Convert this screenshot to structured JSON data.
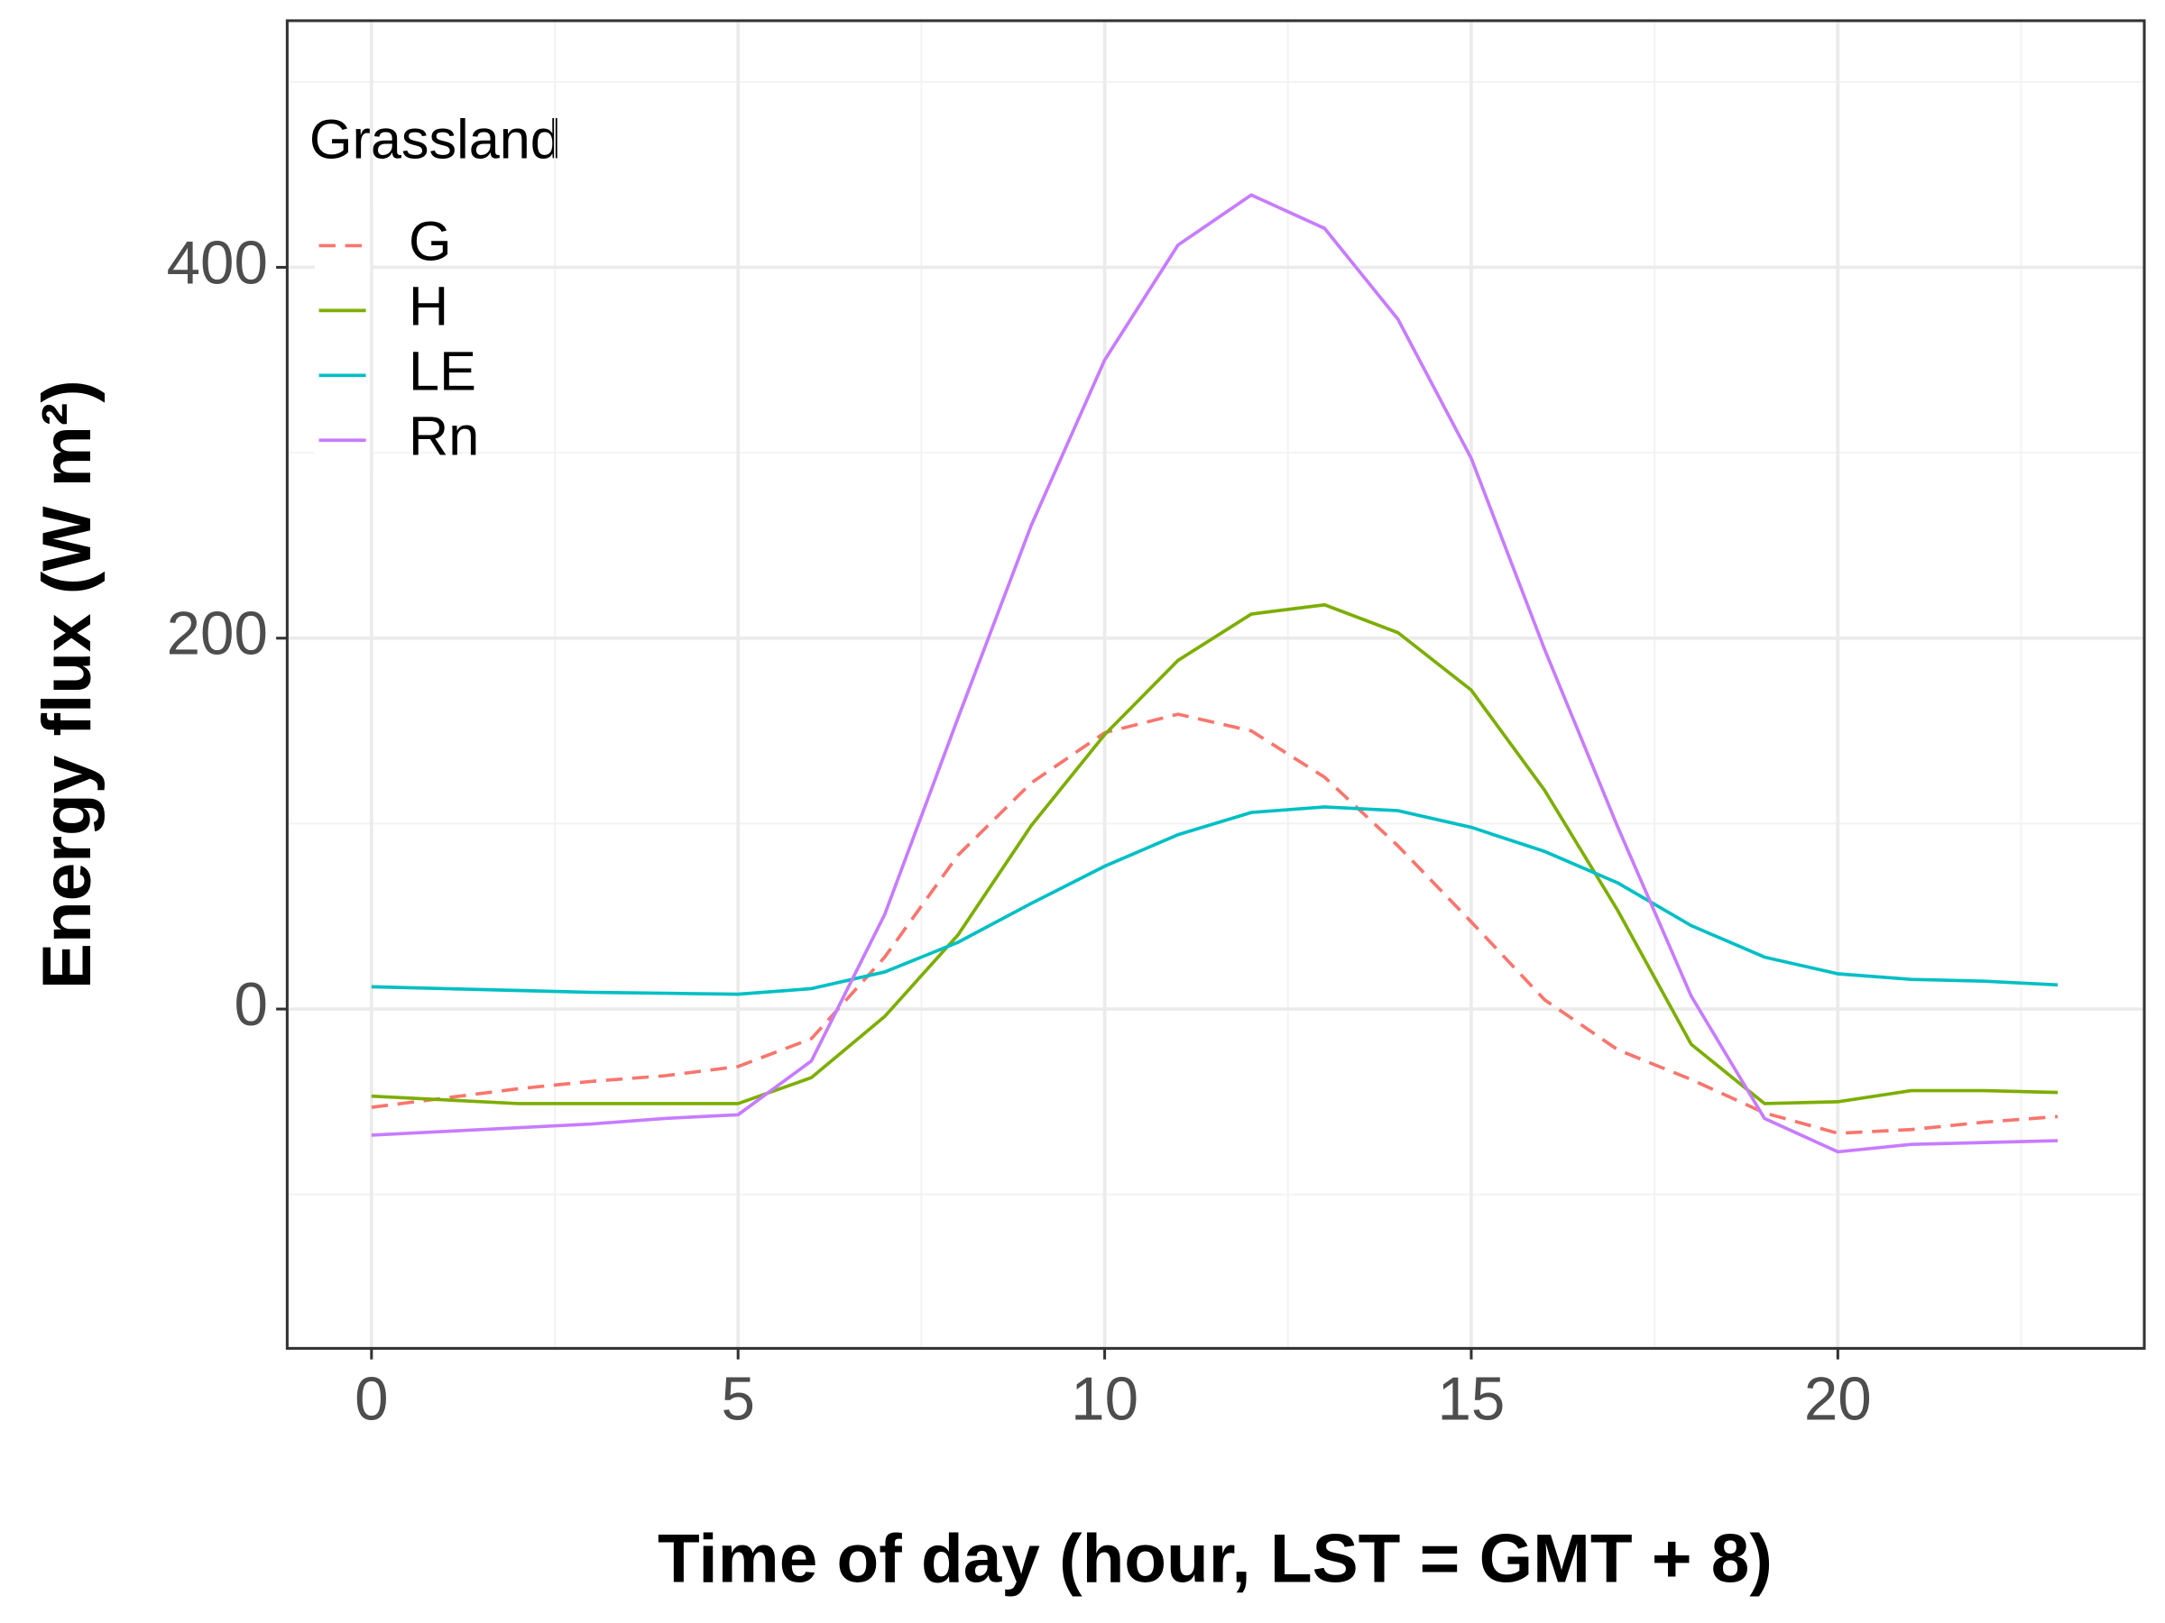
{
  "chart_data": {
    "type": "line",
    "xlabel": "Time of day (hour, LST = GMT + 8)",
    "ylabel": "Energy flux (W m²)",
    "legend_title": "Grassland",
    "legend_position": "top-left",
    "grid": true,
    "x": [
      0,
      1,
      2,
      3,
      4,
      5,
      6,
      7,
      8,
      9,
      10,
      11,
      12,
      13,
      14,
      15,
      16,
      17,
      18,
      19,
      20,
      21,
      22,
      23
    ],
    "xlim": [
      -1.15,
      24.18
    ],
    "xticks": [
      0,
      5,
      10,
      15,
      20
    ],
    "xminorticks": [
      2.5,
      7.5,
      12.5,
      17.5,
      22.5
    ],
    "ylim": [
      -183,
      533
    ],
    "yticks": [
      0,
      200,
      400
    ],
    "yminorticks": [
      -100,
      100,
      300,
      500
    ],
    "series": [
      {
        "name": "G",
        "color": "#F8766D",
        "dash": true,
        "values": [
          -53,
          -48,
          -43,
          -39,
          -36,
          -31,
          -16,
          28,
          83,
          122,
          149,
          159,
          150,
          125,
          88,
          47,
          5,
          -22,
          -38,
          -56,
          -67,
          -65,
          -61,
          -58
        ]
      },
      {
        "name": "H",
        "color": "#7CAE00",
        "dash": false,
        "values": [
          -47,
          -49,
          -51,
          -51,
          -51,
          -51,
          -37,
          -4,
          40,
          99,
          148,
          188,
          213,
          218,
          203,
          172,
          118,
          53,
          -19,
          -51,
          -50,
          -44,
          -44,
          -45
        ]
      },
      {
        "name": "LE",
        "color": "#00BFC4",
        "dash": false,
        "values": [
          12,
          11,
          10,
          9,
          8.5,
          8,
          11,
          20,
          36,
          57,
          77,
          94,
          106,
          109,
          107,
          98,
          85,
          68,
          45,
          28,
          19,
          16,
          15,
          13
        ]
      },
      {
        "name": "Rn",
        "color": "#C77CFF",
        "dash": false,
        "values": [
          -68,
          -66,
          -64,
          -62,
          -59,
          -57,
          -28,
          51,
          157,
          261,
          350,
          412,
          439,
          421,
          372,
          297,
          194,
          98,
          7,
          -59,
          -77,
          -73,
          -72,
          -71
        ]
      }
    ]
  }
}
